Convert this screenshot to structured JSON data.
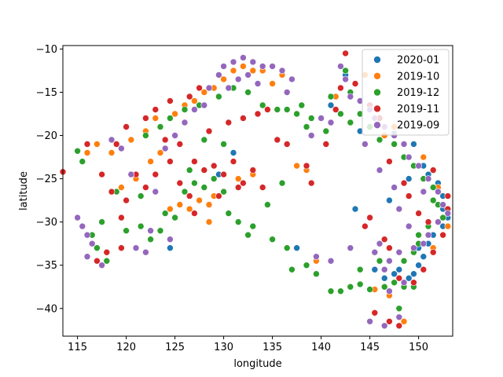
{
  "chart_data": {
    "type": "scatter",
    "xlabel": "longitude",
    "ylabel": "latitude",
    "xlim": [
      113.5,
      153.5
    ],
    "ylim": [
      -43.2,
      -9.6
    ],
    "xticks": [
      115,
      120,
      125,
      130,
      135,
      140,
      145,
      150
    ],
    "yticks": [
      -10,
      -15,
      -20,
      -25,
      -30,
      -35,
      -40
    ],
    "grid": false,
    "legend_position": "top-right",
    "series": [
      {
        "name": "2020-01",
        "color": "#1f77b4",
        "points": [
          [
            147.5,
            -19.8
          ],
          [
            149.5,
            -21.0
          ],
          [
            150.5,
            -23.5
          ],
          [
            151.0,
            -24.5
          ],
          [
            152.0,
            -25.5
          ],
          [
            152.5,
            -27.0
          ],
          [
            152.5,
            -28.5
          ],
          [
            153.0,
            -29.5
          ],
          [
            152.5,
            -30.5
          ],
          [
            151.5,
            -31.5
          ],
          [
            151.0,
            -32.5
          ],
          [
            150.5,
            -34.0
          ],
          [
            150.0,
            -35.0
          ],
          [
            149.5,
            -36.0
          ],
          [
            149.0,
            -36.5
          ],
          [
            148.5,
            -37.2
          ],
          [
            149.5,
            -37.0
          ],
          [
            147.5,
            -36.0
          ],
          [
            146.5,
            -36.5
          ],
          [
            145.5,
            -35.5
          ],
          [
            148.0,
            -35.5
          ],
          [
            144.0,
            -19.5
          ],
          [
            143.5,
            -28.5
          ],
          [
            137.5,
            -33.0
          ],
          [
            131.0,
            -22.0
          ],
          [
            124.5,
            -33.0
          ],
          [
            129.5,
            -24.5
          ],
          [
            141.0,
            -16.5
          ],
          [
            142.5,
            -13.0
          ],
          [
            149.0,
            -25.0
          ],
          [
            147.0,
            -27.5
          ],
          [
            150.0,
            -33.0
          ]
        ]
      },
      {
        "name": "2019-10",
        "color": "#ff7f0e",
        "points": [
          [
            116.0,
            -22.0
          ],
          [
            117.0,
            -21.0
          ],
          [
            118.5,
            -22.0
          ],
          [
            119.5,
            -26.0
          ],
          [
            121.0,
            -25.0
          ],
          [
            122.5,
            -23.0
          ],
          [
            123.5,
            -22.0
          ],
          [
            124.5,
            -28.5
          ],
          [
            125.5,
            -28.0
          ],
          [
            126.5,
            -28.5
          ],
          [
            127.5,
            -27.5
          ],
          [
            128.5,
            -28.0
          ],
          [
            129.0,
            -27.0
          ],
          [
            125.0,
            -17.5
          ],
          [
            126.0,
            -16.5
          ],
          [
            127.0,
            -16.0
          ],
          [
            128.0,
            -15.0
          ],
          [
            129.0,
            -14.5
          ],
          [
            130.0,
            -13.5
          ],
          [
            131.0,
            -12.5
          ],
          [
            132.0,
            -12.0
          ],
          [
            133.0,
            -12.5
          ],
          [
            134.0,
            -12.5
          ],
          [
            135.0,
            -14.0
          ],
          [
            136.0,
            -13.0
          ],
          [
            133.0,
            -24.5
          ],
          [
            137.5,
            -23.5
          ],
          [
            138.5,
            -24.0
          ],
          [
            139.5,
            -34.5
          ],
          [
            145.5,
            -37.8
          ],
          [
            147.0,
            -38.5
          ],
          [
            148.5,
            -41.5
          ],
          [
            146.5,
            -20.0
          ],
          [
            147.5,
            -19.0
          ],
          [
            141.5,
            -15.5
          ],
          [
            150.5,
            -22.5
          ],
          [
            152.0,
            -26.0
          ],
          [
            152.5,
            -28.0
          ],
          [
            153.0,
            -30.5
          ],
          [
            151.5,
            -33.0
          ],
          [
            123.0,
            -18.0
          ],
          [
            122.0,
            -19.5
          ],
          [
            120.5,
            -20.5
          ],
          [
            128.5,
            -30.0
          ],
          [
            131.5,
            -25.0
          ],
          [
            144.5,
            -13.0
          ]
        ]
      },
      {
        "name": "2019-12",
        "color": "#2ca02c",
        "points": [
          [
            115.0,
            -21.8
          ],
          [
            115.5,
            -23.0
          ],
          [
            116.5,
            -31.5
          ],
          [
            117.0,
            -33.0
          ],
          [
            118.0,
            -34.5
          ],
          [
            117.5,
            -30.0
          ],
          [
            120.0,
            -31.0
          ],
          [
            121.5,
            -30.5
          ],
          [
            122.5,
            -32.0
          ],
          [
            123.5,
            -31.0
          ],
          [
            124.0,
            -29.0
          ],
          [
            125.0,
            -29.5
          ],
          [
            126.0,
            -26.5
          ],
          [
            126.5,
            -24.0
          ],
          [
            127.0,
            -25.5
          ],
          [
            128.0,
            -26.0
          ],
          [
            129.0,
            -25.0
          ],
          [
            130.0,
            -26.5
          ],
          [
            130.5,
            -29.0
          ],
          [
            131.5,
            -30.0
          ],
          [
            132.5,
            -31.5
          ],
          [
            133.0,
            -30.5
          ],
          [
            134.5,
            -28.0
          ],
          [
            135.0,
            -32.0
          ],
          [
            136.5,
            -33.0
          ],
          [
            137.0,
            -35.5
          ],
          [
            138.5,
            -35.0
          ],
          [
            139.5,
            -36.0
          ],
          [
            141.0,
            -38.0
          ],
          [
            142.0,
            -38.0
          ],
          [
            143.0,
            -37.5
          ],
          [
            144.0,
            -37.2
          ],
          [
            145.0,
            -37.8
          ],
          [
            146.5,
            -37.5
          ],
          [
            147.5,
            -37.0
          ],
          [
            148.5,
            -37.5
          ],
          [
            149.5,
            -37.5
          ],
          [
            148.0,
            -40.0
          ],
          [
            140.5,
            -19.5
          ],
          [
            138.5,
            -19.0
          ],
          [
            139.0,
            -18.0
          ],
          [
            137.5,
            -17.5
          ],
          [
            136.5,
            -17.0
          ],
          [
            138.0,
            -16.5
          ],
          [
            141.0,
            -15.5
          ],
          [
            142.0,
            -17.5
          ],
          [
            143.0,
            -18.5
          ],
          [
            144.0,
            -17.5
          ],
          [
            145.0,
            -19.0
          ],
          [
            146.0,
            -20.5
          ],
          [
            147.5,
            -21.0
          ],
          [
            148.5,
            -22.5
          ],
          [
            149.5,
            -23.5
          ],
          [
            150.5,
            -25.0
          ],
          [
            151.5,
            -26.0
          ],
          [
            152.0,
            -28.0
          ],
          [
            152.5,
            -29.5
          ],
          [
            151.0,
            -30.5
          ],
          [
            150.0,
            -31.5
          ],
          [
            149.5,
            -33.5
          ],
          [
            148.5,
            -34.5
          ],
          [
            146.0,
            -34.5
          ],
          [
            144.0,
            -35.5
          ],
          [
            122.0,
            -20.0
          ],
          [
            123.5,
            -19.0
          ],
          [
            124.5,
            -18.0
          ],
          [
            126.0,
            -17.0
          ],
          [
            127.5,
            -16.5
          ],
          [
            129.5,
            -15.5
          ],
          [
            131.0,
            -14.5
          ],
          [
            132.5,
            -15.0
          ],
          [
            134.0,
            -16.5
          ],
          [
            135.5,
            -17.0
          ],
          [
            121.5,
            -27.0
          ],
          [
            119.0,
            -26.5
          ],
          [
            128.0,
            -20.5
          ],
          [
            130.0,
            -21.0
          ],
          [
            136.0,
            -25.5
          ],
          [
            142.5,
            -12.5
          ],
          [
            143.0,
            -15.0
          ],
          [
            150.0,
            -32.5
          ],
          [
            151.5,
            -27.5
          ]
        ]
      },
      {
        "name": "2019-11",
        "color": "#d62728",
        "points": [
          [
            113.5,
            -24.2
          ],
          [
            116.0,
            -21.0
          ],
          [
            117.5,
            -24.5
          ],
          [
            118.5,
            -26.5
          ],
          [
            119.5,
            -29.5
          ],
          [
            120.0,
            -27.5
          ],
          [
            121.0,
            -24.5
          ],
          [
            122.0,
            -26.0
          ],
          [
            123.0,
            -24.5
          ],
          [
            124.5,
            -23.0
          ],
          [
            125.5,
            -25.5
          ],
          [
            126.5,
            -27.0
          ],
          [
            127.0,
            -23.0
          ],
          [
            128.0,
            -24.0
          ],
          [
            129.0,
            -23.5
          ],
          [
            130.0,
            -24.5
          ],
          [
            131.0,
            -23.0
          ],
          [
            132.0,
            -25.5
          ],
          [
            133.0,
            -24.0
          ],
          [
            134.0,
            -26.0
          ],
          [
            128.5,
            -19.5
          ],
          [
            130.5,
            -18.5
          ],
          [
            132.0,
            -18.0
          ],
          [
            133.5,
            -17.5
          ],
          [
            134.5,
            -17.0
          ],
          [
            126.5,
            -15.5
          ],
          [
            127.5,
            -14.5
          ],
          [
            124.5,
            -16.0
          ],
          [
            123.0,
            -17.0
          ],
          [
            122.0,
            -18.0
          ],
          [
            120.0,
            -19.0
          ],
          [
            119.0,
            -21.0
          ],
          [
            124.0,
            -20.5
          ],
          [
            125.5,
            -21.0
          ],
          [
            117.0,
            -34.5
          ],
          [
            118.0,
            -33.5
          ],
          [
            119.5,
            -33.0
          ],
          [
            138.5,
            -23.5
          ],
          [
            139.0,
            -25.5
          ],
          [
            140.5,
            -21.0
          ],
          [
            141.5,
            -17.0
          ],
          [
            142.0,
            -14.5
          ],
          [
            142.5,
            -10.5
          ],
          [
            143.5,
            -14.0
          ],
          [
            145.0,
            -16.5
          ],
          [
            146.0,
            -18.0
          ],
          [
            147.0,
            -23.0
          ],
          [
            148.5,
            -25.5
          ],
          [
            149.0,
            -27.0
          ],
          [
            150.0,
            -29.0
          ],
          [
            151.0,
            -30.0
          ],
          [
            152.5,
            -31.5
          ],
          [
            153.0,
            -28.5
          ],
          [
            151.5,
            -33.5
          ],
          [
            150.5,
            -35.5
          ],
          [
            149.5,
            -37.0
          ],
          [
            148.0,
            -36.5
          ],
          [
            147.0,
            -33.0
          ],
          [
            145.0,
            -29.5
          ],
          [
            146.5,
            -32.0
          ],
          [
            144.5,
            -30.5
          ],
          [
            145.5,
            -40.5
          ],
          [
            147.0,
            -41.5
          ],
          [
            148.0,
            -42.0
          ],
          [
            135.5,
            -20.5
          ],
          [
            136.5,
            -21.0
          ],
          [
            131.5,
            -26.0
          ],
          [
            129.5,
            -27.0
          ],
          [
            127.0,
            -29.0
          ],
          [
            151.5,
            -24.0
          ],
          [
            153.0,
            -27.0
          ]
        ]
      },
      {
        "name": "2019-09",
        "color": "#9467bd",
        "points": [
          [
            115.0,
            -29.5
          ],
          [
            115.5,
            -30.5
          ],
          [
            116.0,
            -31.5
          ],
          [
            116.5,
            -32.5
          ],
          [
            116.0,
            -34.0
          ],
          [
            117.5,
            -35.0
          ],
          [
            118.5,
            -20.5
          ],
          [
            119.5,
            -21.5
          ],
          [
            120.5,
            -24.5
          ],
          [
            121.0,
            -33.0
          ],
          [
            122.0,
            -33.5
          ],
          [
            123.0,
            -26.5
          ],
          [
            124.0,
            -21.5
          ],
          [
            125.0,
            -20.0
          ],
          [
            126.0,
            -18.5
          ],
          [
            127.0,
            -17.0
          ],
          [
            128.0,
            -16.5
          ],
          [
            128.5,
            -14.5
          ],
          [
            129.5,
            -13.0
          ],
          [
            130.0,
            -12.0
          ],
          [
            131.0,
            -11.5
          ],
          [
            132.0,
            -11.0
          ],
          [
            133.0,
            -11.5
          ],
          [
            134.0,
            -12.0
          ],
          [
            135.0,
            -12.0
          ],
          [
            136.0,
            -12.5
          ],
          [
            137.0,
            -13.5
          ],
          [
            136.5,
            -15.0
          ],
          [
            133.5,
            -14.0
          ],
          [
            131.5,
            -13.5
          ],
          [
            130.5,
            -14.5
          ],
          [
            132.5,
            -13.0
          ],
          [
            142.0,
            -12.0
          ],
          [
            142.5,
            -13.5
          ],
          [
            143.0,
            -15.5
          ],
          [
            144.0,
            -16.0
          ],
          [
            145.0,
            -17.0
          ],
          [
            145.5,
            -18.0
          ],
          [
            146.5,
            -19.0
          ],
          [
            147.5,
            -20.0
          ],
          [
            148.5,
            -21.0
          ],
          [
            149.0,
            -22.5
          ],
          [
            150.0,
            -23.5
          ],
          [
            151.0,
            -25.0
          ],
          [
            152.0,
            -26.5
          ],
          [
            152.5,
            -28.0
          ],
          [
            153.0,
            -29.0
          ],
          [
            152.0,
            -30.0
          ],
          [
            151.0,
            -31.5
          ],
          [
            150.5,
            -32.5
          ],
          [
            149.5,
            -33.0
          ],
          [
            148.0,
            -33.5
          ],
          [
            147.0,
            -34.5
          ],
          [
            146.0,
            -32.5
          ],
          [
            145.5,
            -33.5
          ],
          [
            147.0,
            -38.0
          ],
          [
            148.5,
            -37.0
          ],
          [
            146.5,
            -35.5
          ],
          [
            145.0,
            -41.5
          ],
          [
            146.5,
            -42.0
          ],
          [
            148.0,
            -41.0
          ],
          [
            140.0,
            -18.0
          ],
          [
            139.0,
            -20.0
          ],
          [
            141.0,
            -18.5
          ],
          [
            144.5,
            -21.0
          ],
          [
            146.0,
            -24.0
          ],
          [
            147.5,
            -26.0
          ],
          [
            148.0,
            -28.5
          ],
          [
            149.0,
            -30.5
          ],
          [
            150.5,
            -26.5
          ],
          [
            122.5,
            -31.0
          ],
          [
            124.5,
            -32.0
          ],
          [
            139.5,
            -34.0
          ],
          [
            141.0,
            -34.5
          ],
          [
            143.0,
            -33.0
          ]
        ]
      }
    ]
  }
}
